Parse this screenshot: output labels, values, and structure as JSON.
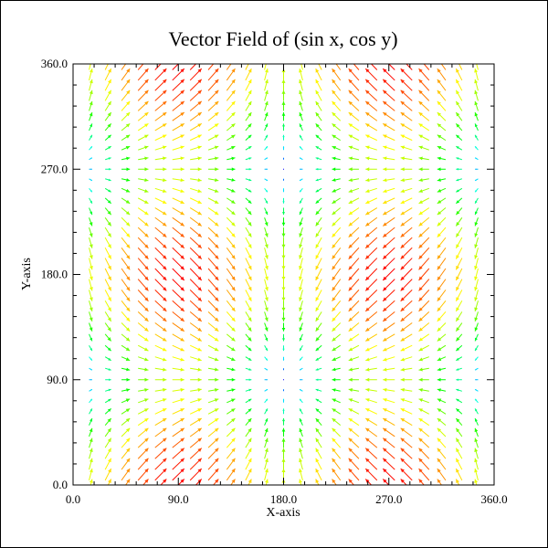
{
  "chart_data": {
    "type": "vector-field",
    "title": "Vector Field of (sin x, cos y)",
    "xlabel": "X-axis",
    "ylabel": "Y-axis",
    "field": {
      "u": "sin x",
      "v": "cos y",
      "angle_units": "degrees"
    },
    "xlim": [
      0,
      360
    ],
    "ylim": [
      0,
      360
    ],
    "x_ticks": [
      0,
      90,
      180,
      270,
      360
    ],
    "x_tick_labels": [
      "0.0",
      "90.0",
      "180.0",
      "270.0",
      "360.0"
    ],
    "y_ticks": [
      0,
      90,
      180,
      270,
      360
    ],
    "y_tick_labels": [
      "0.0",
      "90.0",
      "180.0",
      "270.0",
      "360.0"
    ],
    "grid_x": {
      "start": 15,
      "step": 15,
      "count": 23
    },
    "grid_y": {
      "start": 0,
      "step": 9,
      "count": 41
    },
    "grid": false,
    "colormap": [
      "#0000ff",
      "#00ffff",
      "#00ff00",
      "#ffff00",
      "#ff0000"
    ]
  }
}
